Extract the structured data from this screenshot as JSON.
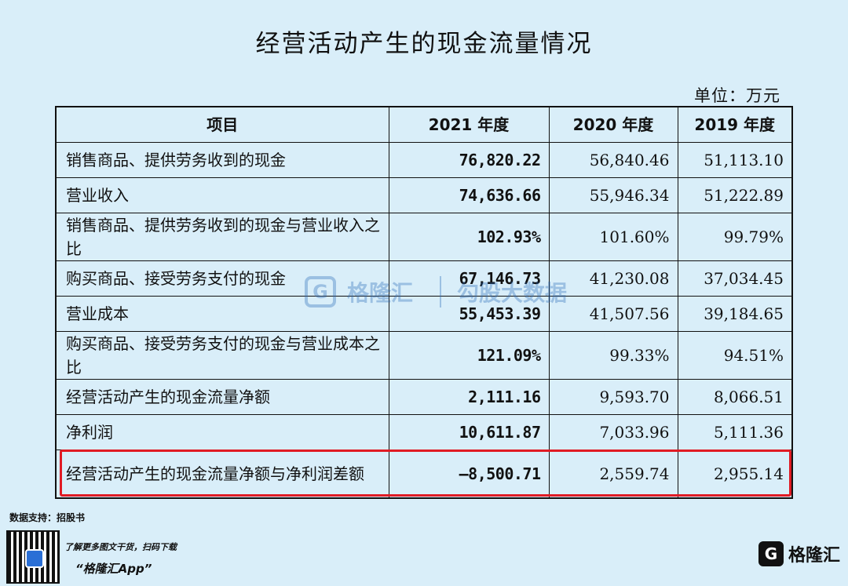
{
  "title": "经营活动产生的现金流量情况",
  "unit": "单位：万元",
  "table": {
    "headers": [
      "项目",
      "2021 年度",
      "2020 年度",
      "2019 年度"
    ],
    "rows": [
      {
        "item": "销售商品、提供劳务收到的现金",
        "y2021": "76,820.22",
        "y2020": "56,840.46",
        "y2019": "51,113.10"
      },
      {
        "item": "营业收入",
        "y2021": "74,636.66",
        "y2020": "55,946.34",
        "y2019": "51,222.89"
      },
      {
        "item": "销售商品、提供劳务收到的现金与营业收入之比",
        "y2021": "102.93%",
        "y2020": "101.60%",
        "y2019": "99.79%"
      },
      {
        "item": "购买商品、接受劳务支付的现金",
        "y2021": "67,146.73",
        "y2020": "41,230.08",
        "y2019": "37,034.45"
      },
      {
        "item": "营业成本",
        "y2021": "55,453.39",
        "y2020": "41,507.56",
        "y2019": "39,184.65"
      },
      {
        "item": "购买商品、接受劳务支付的现金与营业成本之比",
        "y2021": "121.09%",
        "y2020": "99.33%",
        "y2019": "94.51%"
      },
      {
        "item": "经营活动产生的现金流量净额",
        "y2021": "2,111.16",
        "y2020": "9,593.70",
        "y2019": "8,066.51"
      },
      {
        "item": "净利润",
        "y2021": "10,611.87",
        "y2020": "7,033.96",
        "y2019": "5,111.36"
      },
      {
        "item": "经营活动产生的现金流量净额与净利润差额",
        "y2021": "–8,500.71",
        "y2020": "2,559.74",
        "y2019": "2,955.14"
      }
    ]
  },
  "highlight_color": "#e01b24",
  "watermark": {
    "logo": "G",
    "name": "格隆汇",
    "sub": "勾股大数据"
  },
  "footer": {
    "source": "数据支持：招股书",
    "qr_note": "了解更多图文干货，扫码下载",
    "app": "“格隆汇App”",
    "brand_logo": "G",
    "brand_name": "格隆汇"
  }
}
